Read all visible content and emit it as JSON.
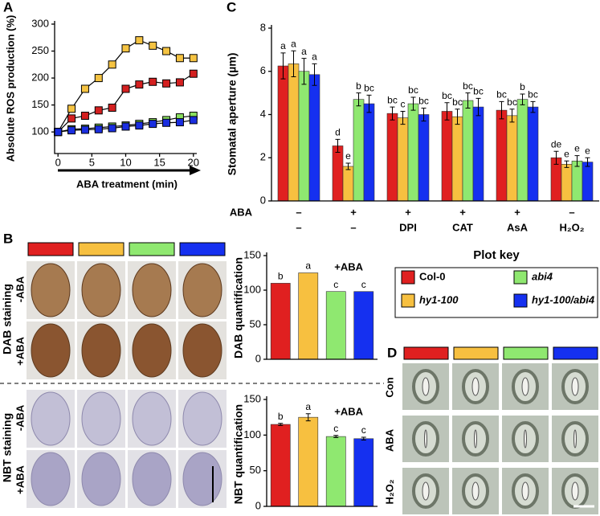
{
  "figure": {
    "panel_labels": [
      "A",
      "B",
      "C",
      "D"
    ],
    "panel_b": {
      "stains": [
        "DAB staining",
        "NBT staining"
      ],
      "conditions": [
        "-ABA",
        "+ABA"
      ]
    },
    "panel_d": {
      "rows": [
        "Con",
        "ABA",
        "H₂O₂"
      ]
    }
  },
  "chart_data": [
    {
      "type": "line",
      "ylabel": "Absolute ROS production (%)",
      "xlabel": "ABA treatment (min)",
      "x": [
        0,
        2,
        4,
        6,
        8,
        10,
        12,
        14,
        16,
        18,
        20
      ],
      "xlim": [
        -0.5,
        20.5
      ],
      "xticks": [
        0,
        5,
        10,
        15,
        20
      ],
      "ylim": [
        60,
        300
      ],
      "yticks": [
        100,
        150,
        200,
        250,
        300
      ],
      "series": [
        {
          "color": "#f5c342",
          "values": [
            100,
            143,
            180,
            200,
            225,
            255,
            270,
            260,
            250,
            237,
            237
          ]
        },
        {
          "color": "#d42020",
          "values": [
            100,
            125,
            130,
            140,
            145,
            180,
            188,
            193,
            190,
            192,
            208
          ]
        },
        {
          "color": "#8be060",
          "values": [
            100,
            105,
            106,
            108,
            110,
            112,
            115,
            118,
            122,
            127,
            130
          ]
        },
        {
          "color": "#1a2ee0",
          "values": [
            100,
            103,
            104,
            105,
            107,
            110,
            112,
            115,
            117,
            118,
            122
          ]
        }
      ]
    },
    {
      "type": "bar",
      "ylabel": "DAB quantification",
      "annotation": "+ABA",
      "ylim": [
        0,
        150
      ],
      "yticks": [
        0,
        50,
        100,
        150
      ],
      "values": [
        110,
        125,
        98,
        98
      ],
      "colors": [
        "#e02020",
        "#f7c040",
        "#8fe870",
        "#1530f0"
      ],
      "letters": [
        "b",
        "a",
        "c",
        "c"
      ]
    },
    {
      "type": "bar",
      "ylabel": "NBT quantification",
      "annotation": "+ABA",
      "ylim": [
        0,
        150
      ],
      "yticks": [
        0,
        50,
        100,
        150
      ],
      "values": [
        115,
        125,
        98,
        95
      ],
      "errors": [
        1.5,
        5,
        1.5,
        2
      ],
      "colors": [
        "#e02020",
        "#f7c040",
        "#8fe870",
        "#1530f0"
      ],
      "letters": [
        "b",
        "a",
        "c",
        "c"
      ]
    },
    {
      "type": "bar",
      "ylabel": "Stomatal aperture (µm)",
      "x_row_label": "ABA",
      "categories": [
        "–",
        "+",
        "+",
        "+",
        "+",
        "–"
      ],
      "categories2": [
        "–",
        "–",
        "DPI",
        "CAT",
        "AsA",
        "H₂O₂"
      ],
      "ylim": [
        0,
        8
      ],
      "yticks": [
        0,
        2,
        4,
        6,
        8
      ],
      "legend_title": "Plot key",
      "series": [
        {
          "name": "Col-0",
          "color": "#e02020",
          "values": [
            6.25,
            2.55,
            4.05,
            4.15,
            4.2,
            2.0
          ],
          "errors": [
            0.6,
            0.3,
            0.3,
            0.4,
            0.4,
            0.3
          ],
          "letters": [
            "a",
            "d",
            "bc",
            "bc",
            "bc",
            "de"
          ]
        },
        {
          "name": "hy1-100",
          "color": "#f7c040",
          "values": [
            6.35,
            1.6,
            3.85,
            3.9,
            3.95,
            1.7
          ],
          "errors": [
            0.6,
            0.15,
            0.3,
            0.35,
            0.3,
            0.15
          ],
          "letters": [
            "a",
            "e",
            "c",
            "bc",
            "bc",
            "e"
          ]
        },
        {
          "name": "abi4",
          "color": "#8fe870",
          "values": [
            6.0,
            4.7,
            4.5,
            4.65,
            4.7,
            1.85
          ],
          "errors": [
            0.6,
            0.3,
            0.3,
            0.35,
            0.25,
            0.25
          ],
          "letters": [
            "a",
            "b",
            "bc",
            "bc",
            "b",
            "e"
          ]
        },
        {
          "name": "hy1-100/abi4",
          "color": "#1530f0",
          "values": [
            5.85,
            4.5,
            4.0,
            4.35,
            4.35,
            1.8
          ],
          "errors": [
            0.5,
            0.4,
            0.3,
            0.4,
            0.25,
            0.2
          ],
          "letters": [
            "a",
            "bc",
            "bc",
            "bc",
            "bc",
            "e"
          ]
        }
      ]
    }
  ]
}
